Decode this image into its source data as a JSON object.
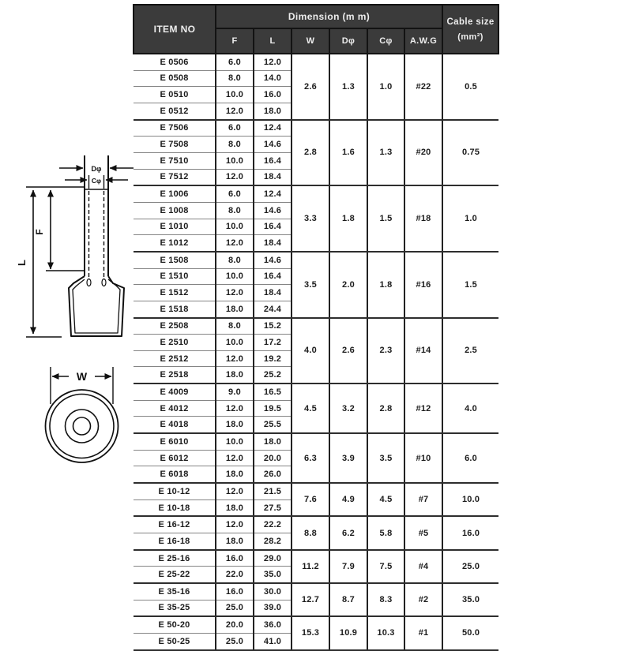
{
  "colors": {
    "header_bg": "#3b3b3b",
    "header_text": "#ededed",
    "grid_dark": "#222222",
    "row_line": "#858585",
    "ink": "#101010"
  },
  "table": {
    "header": {
      "item_no": "ITEM NO",
      "dimension_title": "Dimension (m m)",
      "sub_columns": [
        "F",
        "L",
        "W",
        "Dφ",
        "Cφ",
        "A.W.G"
      ],
      "cable_size": "Cable size",
      "cable_unit": "(mm²)"
    },
    "groups": [
      {
        "w": "2.6",
        "d": "1.3",
        "c": "1.0",
        "awg": "#22",
        "cable": "0.5",
        "items": [
          {
            "no": "E 0506",
            "f": "6.0",
            "l": "12.0"
          },
          {
            "no": "E 0508",
            "f": "8.0",
            "l": "14.0"
          },
          {
            "no": "E 0510",
            "f": "10.0",
            "l": "16.0"
          },
          {
            "no": "E 0512",
            "f": "12.0",
            "l": "18.0"
          }
        ]
      },
      {
        "w": "2.8",
        "d": "1.6",
        "c": "1.3",
        "awg": "#20",
        "cable": "0.75",
        "items": [
          {
            "no": "E 7506",
            "f": "6.0",
            "l": "12.4"
          },
          {
            "no": "E 7508",
            "f": "8.0",
            "l": "14.6"
          },
          {
            "no": "E 7510",
            "f": "10.0",
            "l": "16.4"
          },
          {
            "no": "E 7512",
            "f": "12.0",
            "l": "18.4"
          }
        ]
      },
      {
        "w": "3.3",
        "d": "1.8",
        "c": "1.5",
        "awg": "#18",
        "cable": "1.0",
        "items": [
          {
            "no": "E 1006",
            "f": "6.0",
            "l": "12.4"
          },
          {
            "no": "E 1008",
            "f": "8.0",
            "l": "14.6"
          },
          {
            "no": "E 1010",
            "f": "10.0",
            "l": "16.4"
          },
          {
            "no": "E 1012",
            "f": "12.0",
            "l": "18.4"
          }
        ]
      },
      {
        "w": "3.5",
        "d": "2.0",
        "c": "1.8",
        "awg": "#16",
        "cable": "1.5",
        "items": [
          {
            "no": "E 1508",
            "f": "8.0",
            "l": "14.6"
          },
          {
            "no": "E 1510",
            "f": "10.0",
            "l": "16.4"
          },
          {
            "no": "E 1512",
            "f": "12.0",
            "l": "18.4"
          },
          {
            "no": "E 1518",
            "f": "18.0",
            "l": "24.4"
          }
        ]
      },
      {
        "w": "4.0",
        "d": "2.6",
        "c": "2.3",
        "awg": "#14",
        "cable": "2.5",
        "items": [
          {
            "no": "E 2508",
            "f": "8.0",
            "l": "15.2"
          },
          {
            "no": "E 2510",
            "f": "10.0",
            "l": "17.2"
          },
          {
            "no": "E 2512",
            "f": "12.0",
            "l": "19.2"
          },
          {
            "no": "E 2518",
            "f": "18.0",
            "l": "25.2"
          }
        ]
      },
      {
        "w": "4.5",
        "d": "3.2",
        "c": "2.8",
        "awg": "#12",
        "cable": "4.0",
        "items": [
          {
            "no": "E 4009",
            "f": "9.0",
            "l": "16.5"
          },
          {
            "no": "E 4012",
            "f": "12.0",
            "l": "19.5"
          },
          {
            "no": "E 4018",
            "f": "18.0",
            "l": "25.5"
          }
        ]
      },
      {
        "w": "6.3",
        "d": "3.9",
        "c": "3.5",
        "awg": "#10",
        "cable": "6.0",
        "items": [
          {
            "no": "E 6010",
            "f": "10.0",
            "l": "18.0"
          },
          {
            "no": "E 6012",
            "f": "12.0",
            "l": "20.0"
          },
          {
            "no": "E 6018",
            "f": "18.0",
            "l": "26.0"
          }
        ]
      },
      {
        "w": "7.6",
        "d": "4.9",
        "c": "4.5",
        "awg": "#7",
        "cable": "10.0",
        "items": [
          {
            "no": "E 10-12",
            "f": "12.0",
            "l": "21.5"
          },
          {
            "no": "E 10-18",
            "f": "18.0",
            "l": "27.5"
          }
        ]
      },
      {
        "w": "8.8",
        "d": "6.2",
        "c": "5.8",
        "awg": "#5",
        "cable": "16.0",
        "items": [
          {
            "no": "E 16-12",
            "f": "12.0",
            "l": "22.2"
          },
          {
            "no": "E 16-18",
            "f": "18.0",
            "l": "28.2"
          }
        ]
      },
      {
        "w": "11.2",
        "d": "7.9",
        "c": "7.5",
        "awg": "#4",
        "cable": "25.0",
        "items": [
          {
            "no": "E 25-16",
            "f": "16.0",
            "l": "29.0"
          },
          {
            "no": "E 25-22",
            "f": "22.0",
            "l": "35.0"
          }
        ]
      },
      {
        "w": "12.7",
        "d": "8.7",
        "c": "8.3",
        "awg": "#2",
        "cable": "35.0",
        "items": [
          {
            "no": "E 35-16",
            "f": "16.0",
            "l": "30.0"
          },
          {
            "no": "E 35-25",
            "f": "25.0",
            "l": "39.0"
          }
        ]
      },
      {
        "w": "15.3",
        "d": "10.9",
        "c": "10.3",
        "awg": "#1",
        "cable": "50.0",
        "items": [
          {
            "no": "E 50-20",
            "f": "20.0",
            "l": "36.0"
          },
          {
            "no": "E 50-25",
            "f": "25.0",
            "l": "41.0"
          }
        ]
      }
    ]
  },
  "diagram": {
    "d_label": "Dφ",
    "c_label": "Cφ",
    "l_label": "L",
    "f_label": "F",
    "w_label": "W"
  }
}
